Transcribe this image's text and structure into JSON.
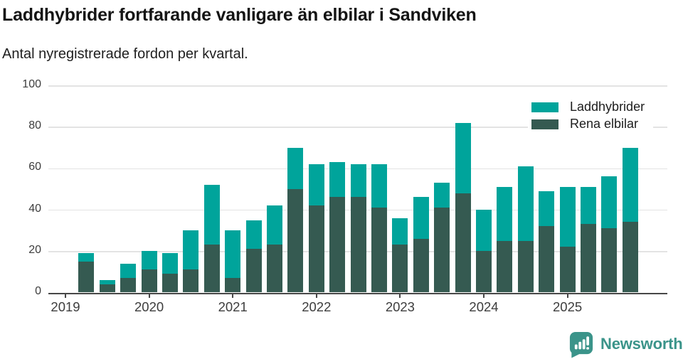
{
  "header": {
    "title": "Laddhybrider fortfarande vanligare än elbilar i Sandviken",
    "subtitle": "Antal nyregistrerade fordon per kvartal."
  },
  "legend": {
    "items": [
      {
        "label": "Laddhybrider",
        "color": "#00a49b"
      },
      {
        "label": "Rena elbilar",
        "color": "#355a51"
      }
    ]
  },
  "chart_data": {
    "type": "bar",
    "stacked": true,
    "title": "Laddhybrider fortfarande vanligare än elbilar i Sandviken",
    "subtitle": "Antal nyregistrerade fordon per kvartal.",
    "xlabel": "",
    "ylabel": "Antal nyregistrerade fordon",
    "x": [
      "2019 Q1",
      "2019 Q2",
      "2019 Q3",
      "2019 Q4",
      "2020 Q1",
      "2020 Q2",
      "2020 Q3",
      "2020 Q4",
      "2021 Q1",
      "2021 Q2",
      "2021 Q3",
      "2021 Q4",
      "2022 Q1",
      "2022 Q2",
      "2022 Q3",
      "2022 Q4",
      "2023 Q1",
      "2023 Q2",
      "2023 Q3",
      "2023 Q4",
      "2024 Q1",
      "2024 Q2",
      "2024 Q3",
      "2024 Q4",
      "2025 Q1",
      "2025 Q2",
      "2025 Q3",
      "2025 Q4"
    ],
    "x_tick_labels": [
      "2019",
      "2020",
      "2021",
      "2022",
      "2023",
      "2024",
      "2025"
    ],
    "y_ticks": [
      0,
      20,
      40,
      60,
      80,
      100
    ],
    "ylim": [
      0,
      100
    ],
    "grid": "horizontal",
    "legend_position": "top-right",
    "series": [
      {
        "name": "Rena elbilar",
        "color": "#355a51",
        "stack_position": "bottom",
        "values": [
          0,
          15,
          4,
          7,
          11,
          9,
          11,
          23,
          7,
          21,
          23,
          50,
          42,
          46,
          46,
          41,
          23,
          26,
          41,
          48,
          20,
          25,
          25,
          32,
          22,
          33,
          31,
          34
        ]
      },
      {
        "name": "Laddhybrider",
        "color": "#00a49b",
        "stack_position": "top",
        "values": [
          0,
          4,
          2,
          7,
          9,
          10,
          19,
          29,
          23,
          14,
          19,
          20,
          20,
          17,
          16,
          21,
          13,
          20,
          12,
          34,
          20,
          26,
          36,
          17,
          29,
          18,
          25,
          36
        ]
      }
    ],
    "stack_totals": [
      0,
      19,
      6,
      14,
      20,
      19,
      30,
      52,
      30,
      35,
      42,
      70,
      62,
      63,
      62,
      62,
      36,
      46,
      53,
      82,
      40,
      51,
      61,
      49,
      51,
      51,
      56,
      70
    ]
  },
  "footer": {
    "brand": "Newsworthy",
    "brand_color": "#3b948a",
    "logo_icon": "speech-bubble-bar-chart"
  }
}
